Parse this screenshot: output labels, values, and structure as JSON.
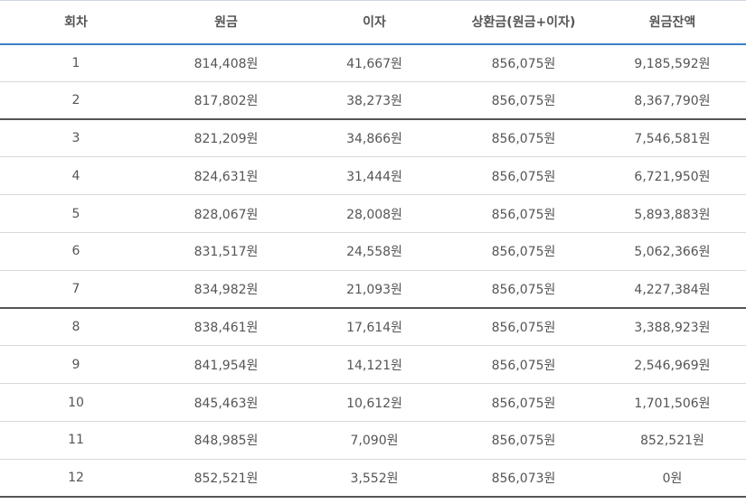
{
  "table": {
    "headers": [
      "회차",
      "원금",
      "이자",
      "상환금(원금+이자)",
      "원금잔액"
    ],
    "rows": [
      [
        "1",
        "814,408원",
        "41,667원",
        "856,075원",
        "9,185,592원"
      ],
      [
        "2",
        "817,802원",
        "38,273원",
        "856,075원",
        "8,367,790원"
      ],
      [
        "3",
        "821,209원",
        "34,866원",
        "856,075원",
        "7,546,581원"
      ],
      [
        "4",
        "824,631원",
        "31,444원",
        "856,075원",
        "6,721,950원"
      ],
      [
        "5",
        "828,067원",
        "28,008원",
        "856,075원",
        "5,893,883원"
      ],
      [
        "6",
        "831,517원",
        "24,558원",
        "856,075원",
        "5,062,366원"
      ],
      [
        "7",
        "834,982원",
        "21,093원",
        "856,075원",
        "4,227,384원"
      ],
      [
        "8",
        "838,461원",
        "17,614원",
        "856,075원",
        "3,388,923원"
      ],
      [
        "9",
        "841,954원",
        "14,121원",
        "856,075원",
        "2,546,969원"
      ],
      [
        "10",
        "845,463원",
        "10,612원",
        "856,075원",
        "1,701,506원"
      ],
      [
        "11",
        "848,985원",
        "7,090원",
        "856,075원",
        "852,521원"
      ],
      [
        "12",
        "852,521원",
        "3,552원",
        "856,073원",
        "0원"
      ]
    ]
  },
  "colors": {
    "header_rule": "#3b7fc4",
    "row_rule": "#d9d9d9",
    "group_rule": "#555555"
  }
}
